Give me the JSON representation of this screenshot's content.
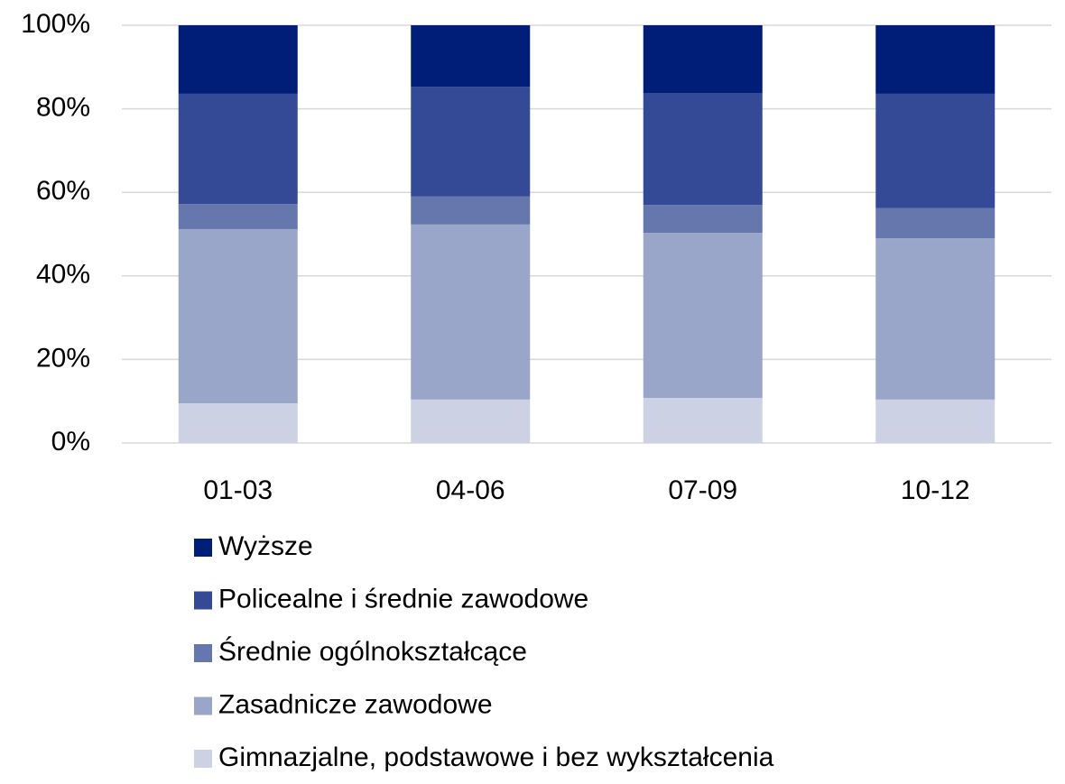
{
  "chart_data": {
    "type": "stacked_bar",
    "categories": [
      "01-03",
      "04-06",
      "07-09",
      "10-12"
    ],
    "series": [
      {
        "name": "Gimnazjalne, podstawowe i bez wykształcenia",
        "color": "#ccd2e4",
        "values": [
          9.5,
          10.4,
          10.8,
          10.4
        ]
      },
      {
        "name": "Zasadnicze zawodowe",
        "color": "#99a5c9",
        "values": [
          41.7,
          41.9,
          39.5,
          38.6
        ]
      },
      {
        "name": "Średnie ogólnokształcące",
        "color": "#6677ae",
        "values": [
          6.0,
          6.7,
          6.7,
          7.2
        ]
      },
      {
        "name": "Policealne i średnie zawodowe",
        "color": "#344a96",
        "values": [
          26.4,
          26.3,
          26.8,
          27.4
        ]
      },
      {
        "name": "Wyższe",
        "color": "#001e78",
        "values": [
          16.4,
          14.7,
          16.2,
          16.4
        ]
      }
    ],
    "ylim": [
      0,
      100
    ],
    "yticks": [
      {
        "value": 0,
        "label": "0%"
      },
      {
        "value": 20,
        "label": "20%"
      },
      {
        "value": 40,
        "label": "40%"
      },
      {
        "value": 60,
        "label": "60%"
      },
      {
        "value": 80,
        "label": "80%"
      },
      {
        "value": 100,
        "label": "100%"
      }
    ],
    "grid": true,
    "legend": "bottom"
  }
}
